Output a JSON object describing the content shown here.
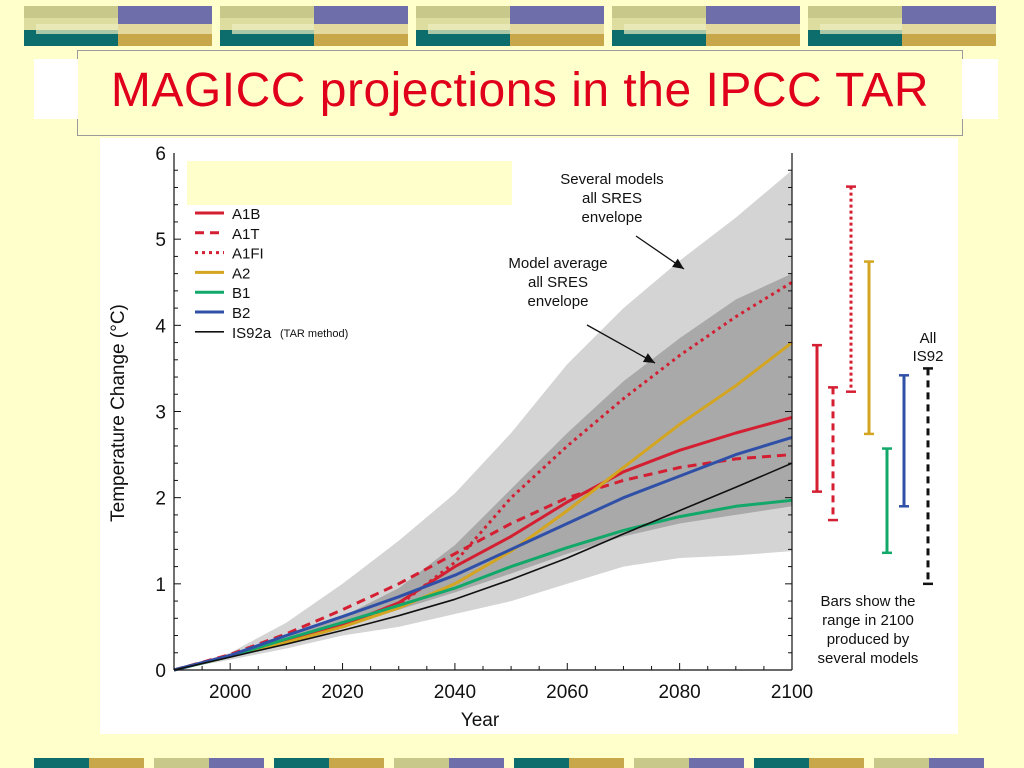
{
  "slide": {
    "title": "MAGICC projections in the IPCC TAR",
    "colors": {
      "background": "#ffffcc",
      "title": "#e0001b",
      "deco_teal": "#0d6d6d",
      "deco_khaki": "#c8c88a",
      "deco_purple": "#6e6eaa",
      "deco_gold": "#c8a64a",
      "deco_light": "#dddda0"
    }
  },
  "chart_data": {
    "type": "line",
    "xlabel": "Year",
    "ylabel": "Temperature Change (°C)",
    "xlim": [
      1990,
      2100
    ],
    "ylim": [
      0,
      6
    ],
    "xticks": [
      "2000",
      "2020",
      "2040",
      "2060",
      "2080",
      "2100"
    ],
    "yticks": [
      "0",
      "1",
      "2",
      "3",
      "4",
      "5",
      "6"
    ],
    "grid": false,
    "legend_position": "top-left",
    "legend_note": "(TAR method)",
    "envelopes": [
      {
        "label": "Several models all SRES envelope",
        "color": "#d4d4d4",
        "x": [
          1990,
          2000,
          2010,
          2020,
          2030,
          2040,
          2050,
          2060,
          2070,
          2080,
          2090,
          2100
        ],
        "upper": [
          0.0,
          0.2,
          0.55,
          1.0,
          1.5,
          2.05,
          2.75,
          3.55,
          4.2,
          4.75,
          5.25,
          5.8
        ],
        "lower": [
          0.0,
          0.12,
          0.25,
          0.4,
          0.5,
          0.65,
          0.8,
          1.0,
          1.2,
          1.3,
          1.33,
          1.38
        ]
      },
      {
        "label": "Model average all SRES envelope",
        "color": "#a9a9a9",
        "x": [
          1990,
          2000,
          2010,
          2020,
          2030,
          2040,
          2050,
          2060,
          2070,
          2080,
          2090,
          2100
        ],
        "upper": [
          0.0,
          0.18,
          0.38,
          0.62,
          0.95,
          1.45,
          2.1,
          2.75,
          3.35,
          3.85,
          4.3,
          4.6
        ],
        "lower": [
          0.0,
          0.14,
          0.3,
          0.5,
          0.7,
          0.9,
          1.12,
          1.35,
          1.55,
          1.7,
          1.8,
          1.9
        ]
      }
    ],
    "series": [
      {
        "name": "A1B",
        "color": "#d41f32",
        "dash": "solid",
        "width": 3,
        "x": [
          1990,
          2000,
          2010,
          2020,
          2030,
          2040,
          2050,
          2060,
          2070,
          2080,
          2090,
          2100
        ],
        "values": [
          0.0,
          0.17,
          0.34,
          0.52,
          0.78,
          1.2,
          1.55,
          1.95,
          2.3,
          2.55,
          2.75,
          2.93
        ]
      },
      {
        "name": "A1T",
        "color": "#d41f32",
        "dash": "dashed",
        "width": 3,
        "x": [
          1990,
          2000,
          2010,
          2020,
          2030,
          2040,
          2050,
          2060,
          2070,
          2080,
          2090,
          2100
        ],
        "values": [
          0.0,
          0.18,
          0.42,
          0.7,
          1.0,
          1.35,
          1.7,
          2.0,
          2.2,
          2.35,
          2.45,
          2.5
        ]
      },
      {
        "name": "A1FI",
        "color": "#d41f32",
        "dash": "dotted",
        "width": 3,
        "x": [
          1990,
          2000,
          2010,
          2020,
          2030,
          2040,
          2050,
          2060,
          2070,
          2080,
          2090,
          2100
        ],
        "values": [
          0.0,
          0.17,
          0.33,
          0.5,
          0.75,
          1.25,
          2.0,
          2.6,
          3.15,
          3.65,
          4.1,
          4.5
        ]
      },
      {
        "name": "A2",
        "color": "#d4a520",
        "dash": "solid",
        "width": 3,
        "x": [
          1990,
          2000,
          2010,
          2020,
          2030,
          2040,
          2050,
          2060,
          2070,
          2080,
          2090,
          2100
        ],
        "values": [
          0.0,
          0.16,
          0.32,
          0.5,
          0.72,
          1.0,
          1.38,
          1.85,
          2.35,
          2.85,
          3.3,
          3.8
        ]
      },
      {
        "name": "B1",
        "color": "#12a86a",
        "dash": "solid",
        "width": 3,
        "x": [
          1990,
          2000,
          2010,
          2020,
          2030,
          2040,
          2050,
          2060,
          2070,
          2080,
          2090,
          2100
        ],
        "values": [
          0.0,
          0.16,
          0.36,
          0.55,
          0.75,
          0.95,
          1.2,
          1.42,
          1.62,
          1.78,
          1.9,
          1.97
        ]
      },
      {
        "name": "B2",
        "color": "#3050a8",
        "dash": "solid",
        "width": 3,
        "x": [
          1990,
          2000,
          2010,
          2020,
          2030,
          2040,
          2050,
          2060,
          2070,
          2080,
          2090,
          2100
        ],
        "values": [
          0.0,
          0.17,
          0.4,
          0.62,
          0.85,
          1.1,
          1.4,
          1.7,
          2.0,
          2.25,
          2.5,
          2.7
        ]
      },
      {
        "name": "IS92a",
        "color": "#111111",
        "dash": "solid",
        "width": 1.6,
        "x": [
          1990,
          2000,
          2010,
          2020,
          2030,
          2040,
          2050,
          2060,
          2070,
          2080,
          2090,
          2100
        ],
        "values": [
          0.0,
          0.15,
          0.3,
          0.46,
          0.63,
          0.82,
          1.05,
          1.3,
          1.58,
          1.85,
          2.12,
          2.4
        ]
      }
    ],
    "range_bars_2100": [
      {
        "name": "A1B",
        "color": "#d41f32",
        "dash": "solid",
        "min": 2.07,
        "max": 3.77
      },
      {
        "name": "A1T",
        "color": "#d41f32",
        "dash": "dashed",
        "min": 1.74,
        "max": 3.28
      },
      {
        "name": "A1FI",
        "color": "#d41f32",
        "dash": "dotted",
        "min": 3.23,
        "max": 5.61
      },
      {
        "name": "A2",
        "color": "#d4a520",
        "dash": "solid",
        "min": 2.74,
        "max": 4.74
      },
      {
        "name": "B1",
        "color": "#12a86a",
        "dash": "solid",
        "min": 1.36,
        "max": 2.57
      },
      {
        "name": "B2",
        "color": "#3050a8",
        "dash": "solid",
        "min": 1.9,
        "max": 3.42
      },
      {
        "name": "All IS92",
        "color": "#111111",
        "dash": "dashed",
        "min": 1.0,
        "max": 3.5
      }
    ],
    "annotations": {
      "several_models": [
        "Several models",
        "all SRES",
        "envelope"
      ],
      "model_average": [
        "Model average",
        "all SRES",
        "envelope"
      ],
      "all_is92": [
        "All",
        "IS92"
      ],
      "bars_note": [
        "Bars show the",
        "range in 2100",
        "produced by",
        "several models"
      ]
    }
  }
}
